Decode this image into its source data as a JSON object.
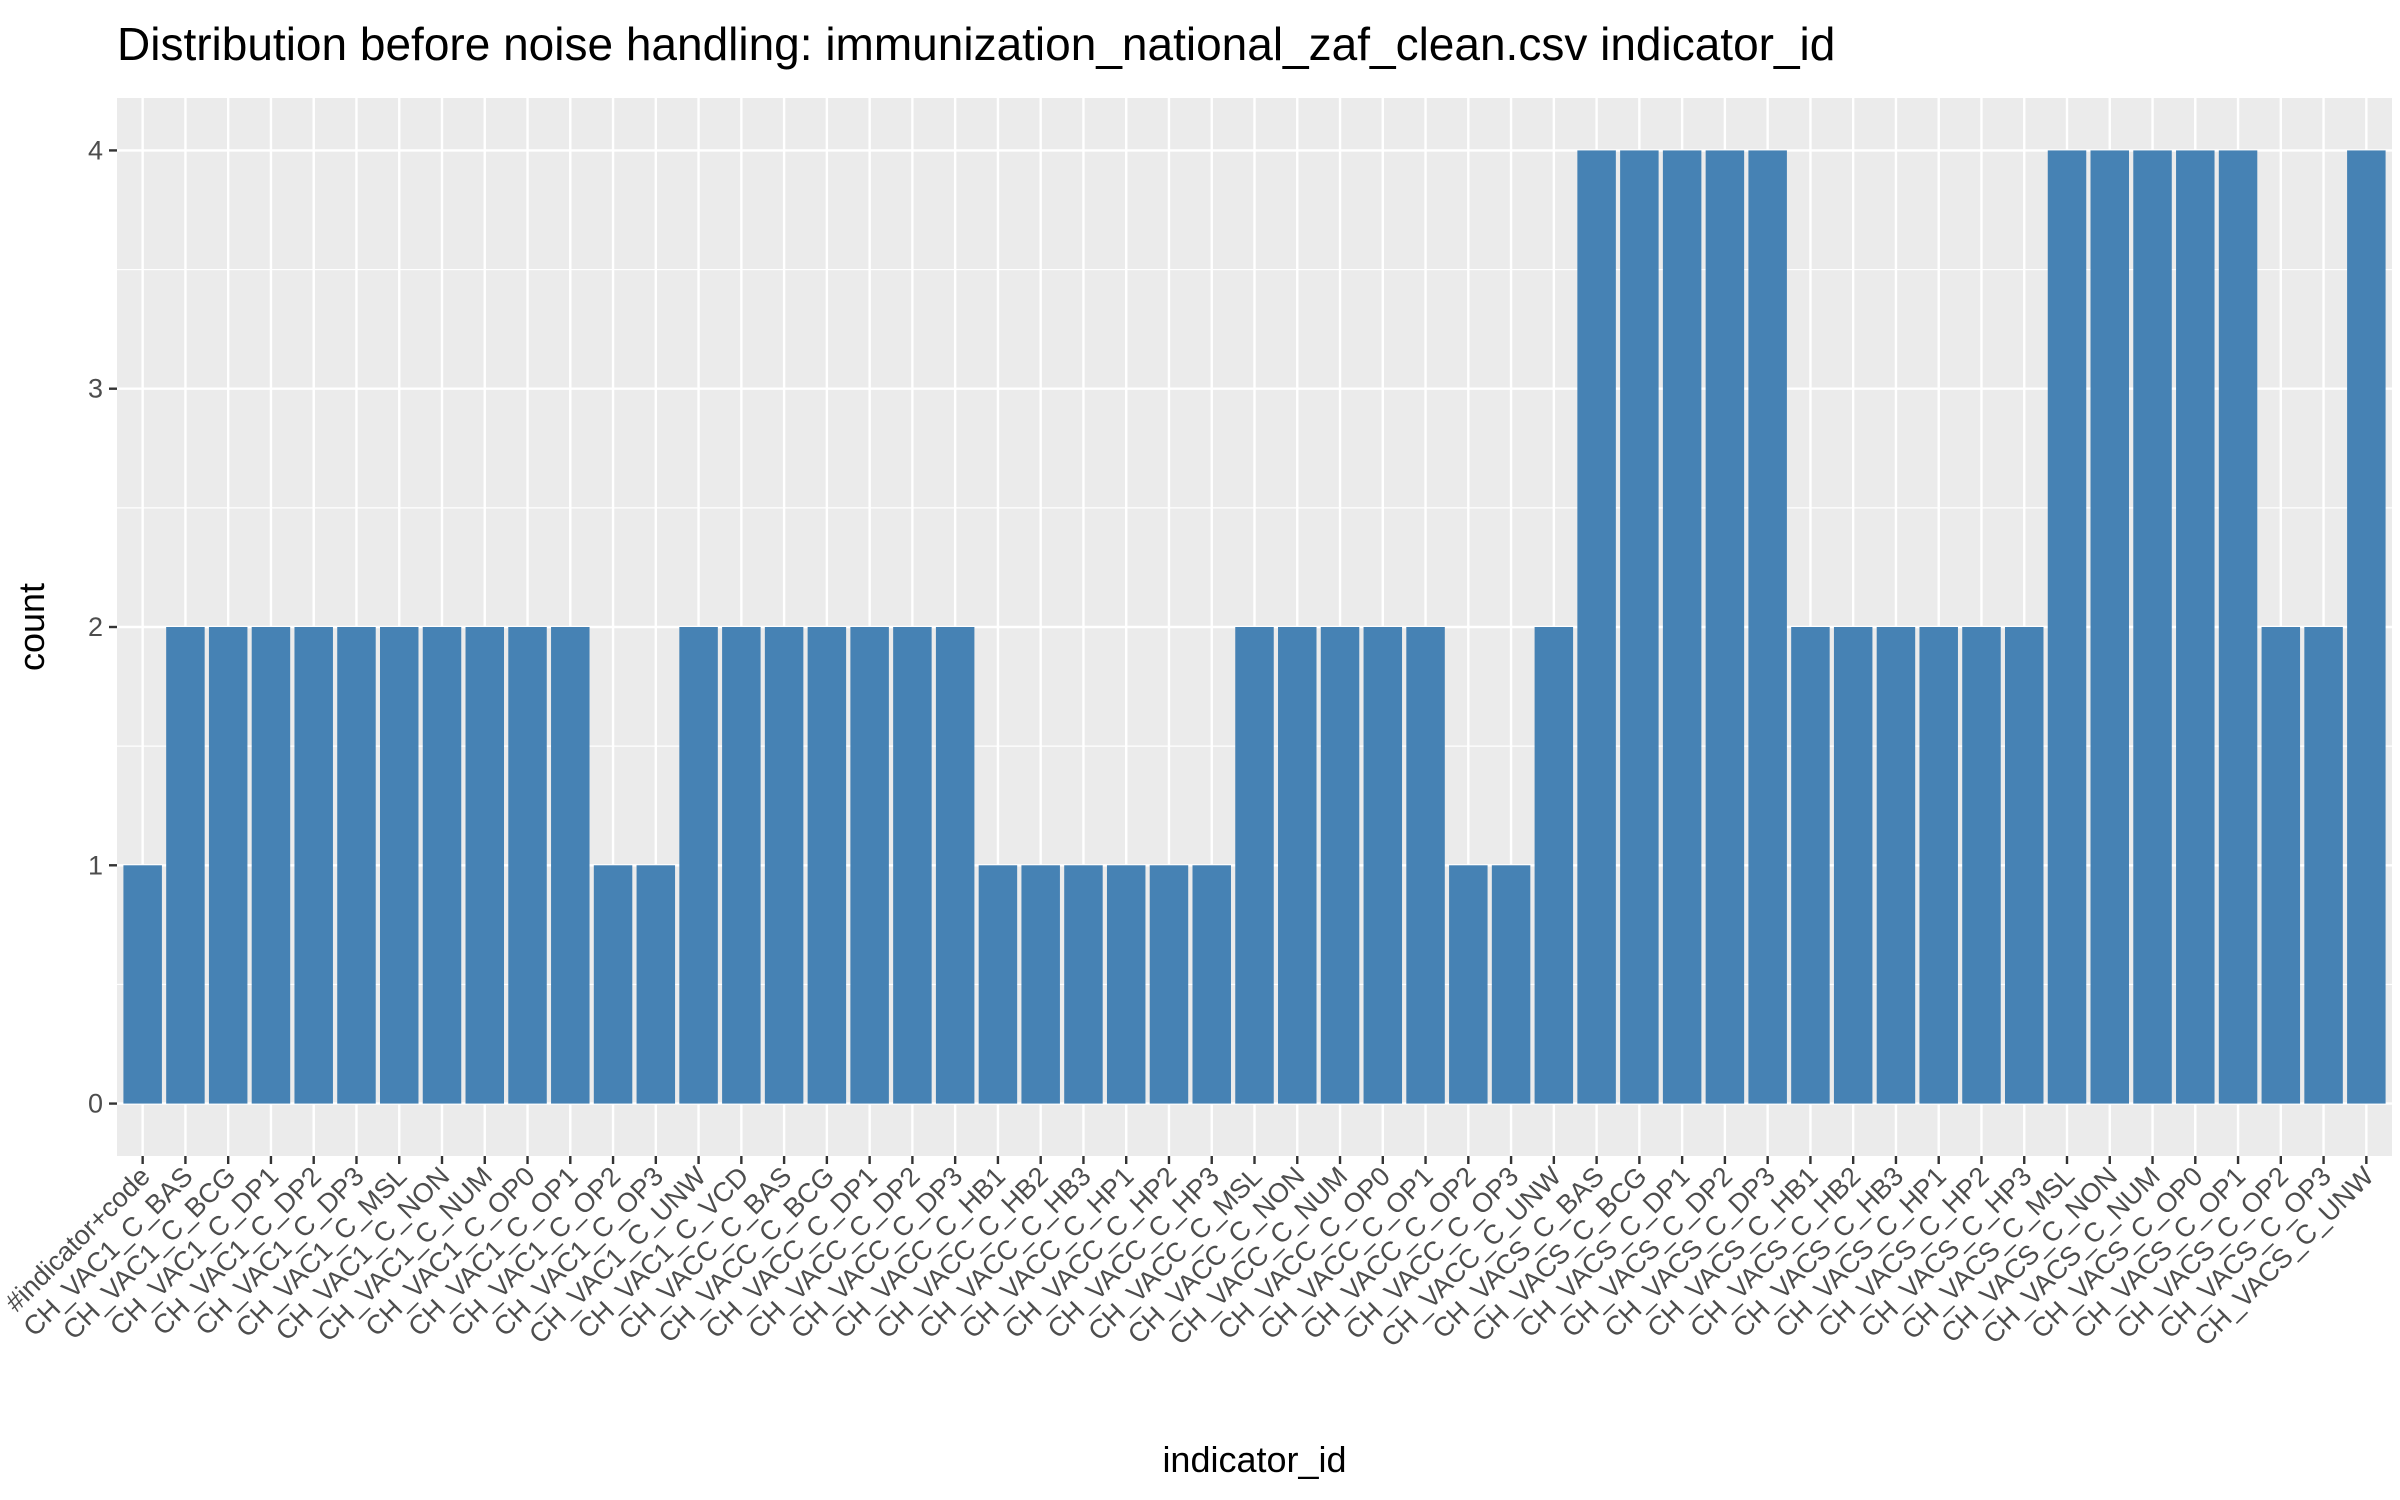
{
  "chart_data": {
    "type": "bar",
    "title": "Distribution before noise handling: immunization_national_zaf_clean.csv indicator_id",
    "xlabel": "indicator_id",
    "ylabel": "count",
    "ylim": [
      -0.22,
      4.22
    ],
    "yticks": [
      0,
      1,
      2,
      3,
      4
    ],
    "grid": true,
    "legend": "none",
    "colors": {
      "bar": "#4682b4",
      "panel": "#ebebeb",
      "grid": "#ffffff",
      "tick_text": "#4d4d4d"
    },
    "categories": [
      "#indicator+code",
      "CH_VAC1_C_BAS",
      "CH_VAC1_C_BCG",
      "CH_VAC1_C_DP1",
      "CH_VAC1_C_DP2",
      "CH_VAC1_C_DP3",
      "CH_VAC1_C_MSL",
      "CH_VAC1_C_NON",
      "CH_VAC1_C_NUM",
      "CH_VAC1_C_OP0",
      "CH_VAC1_C_OP1",
      "CH_VAC1_C_OP2",
      "CH_VAC1_C_OP3",
      "CH_VAC1_C_UNW",
      "CH_VAC1_C_VCD",
      "CH_VACC_C_BAS",
      "CH_VACC_C_BCG",
      "CH_VACC_C_DP1",
      "CH_VACC_C_DP2",
      "CH_VACC_C_DP3",
      "CH_VACC_C_HB1",
      "CH_VACC_C_HB2",
      "CH_VACC_C_HB3",
      "CH_VACC_C_HP1",
      "CH_VACC_C_HP2",
      "CH_VACC_C_HP3",
      "CH_VACC_C_MSL",
      "CH_VACC_C_NON",
      "CH_VACC_C_NUM",
      "CH_VACC_C_OP0",
      "CH_VACC_C_OP1",
      "CH_VACC_C_OP2",
      "CH_VACC_C_OP3",
      "CH_VACC_C_UNW",
      "CH_VACS_C_BAS",
      "CH_VACS_C_BCG",
      "CH_VACS_C_DP1",
      "CH_VACS_C_DP2",
      "CH_VACS_C_DP3",
      "CH_VACS_C_HB1",
      "CH_VACS_C_HB2",
      "CH_VACS_C_HB3",
      "CH_VACS_C_HP1",
      "CH_VACS_C_HP2",
      "CH_VACS_C_HP3",
      "CH_VACS_C_MSL",
      "CH_VACS_C_NON",
      "CH_VACS_C_NUM",
      "CH_VACS_C_OP0",
      "CH_VACS_C_OP1",
      "CH_VACS_C_OP2",
      "CH_VACS_C_OP3",
      "CH_VACS_C_UNW"
    ],
    "values": [
      1,
      2,
      2,
      2,
      2,
      2,
      2,
      2,
      2,
      2,
      2,
      1,
      1,
      2,
      2,
      2,
      2,
      2,
      2,
      2,
      1,
      1,
      1,
      1,
      1,
      1,
      2,
      2,
      2,
      2,
      2,
      1,
      1,
      2,
      4,
      4,
      4,
      4,
      4,
      2,
      2,
      2,
      2,
      2,
      2,
      4,
      4,
      4,
      4,
      4,
      2,
      2,
      4
    ]
  }
}
